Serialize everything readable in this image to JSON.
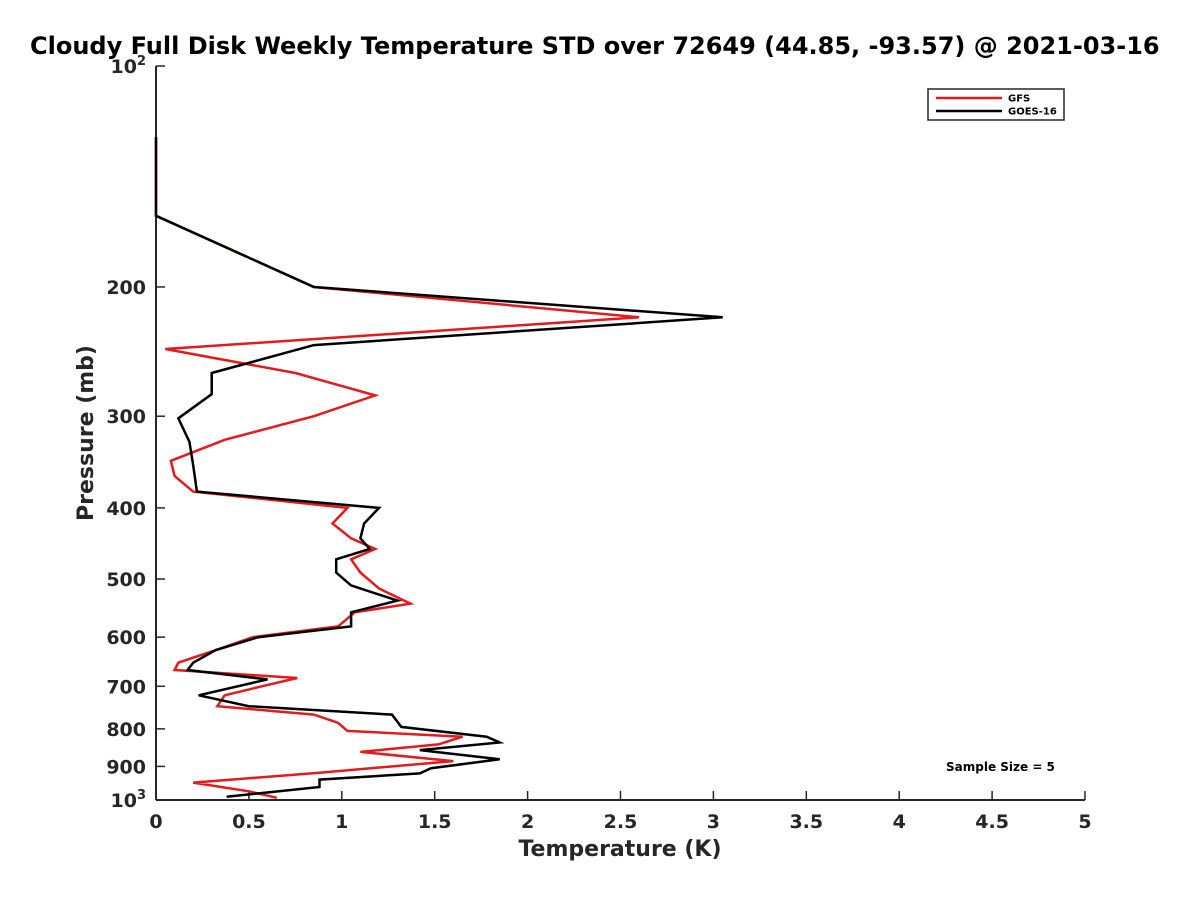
{
  "chart_data": {
    "type": "line",
    "title": "Cloudy Full Disk Weekly Temperature STD over 72649 (44.85, -93.57) @ 2021-03-16",
    "xlabel": "Temperature (K)",
    "ylabel": "Pressure (mb)",
    "xlim": [
      0,
      5
    ],
    "ylim": [
      1000,
      100
    ],
    "yscale": "log",
    "xticks": [
      {
        "value": 0,
        "label": "0"
      },
      {
        "value": 0.5,
        "label": "0.5"
      },
      {
        "value": 1,
        "label": "1"
      },
      {
        "value": 1.5,
        "label": "1.5"
      },
      {
        "value": 2,
        "label": "2"
      },
      {
        "value": 2.5,
        "label": "2.5"
      },
      {
        "value": 3,
        "label": "3"
      },
      {
        "value": 3.5,
        "label": "3.5"
      },
      {
        "value": 4,
        "label": "4"
      },
      {
        "value": 4.5,
        "label": "4.5"
      },
      {
        "value": 5,
        "label": "5"
      }
    ],
    "yticks": [
      {
        "value": 100,
        "label": "10",
        "exp": "2"
      },
      {
        "value": 200,
        "label": "200",
        "exp": ""
      },
      {
        "value": 300,
        "label": "300",
        "exp": ""
      },
      {
        "value": 400,
        "label": "400",
        "exp": ""
      },
      {
        "value": 500,
        "label": "500",
        "exp": ""
      },
      {
        "value": 600,
        "label": "600",
        "exp": ""
      },
      {
        "value": 700,
        "label": "700",
        "exp": ""
      },
      {
        "value": 800,
        "label": "800",
        "exp": ""
      },
      {
        "value": 900,
        "label": "900",
        "exp": ""
      },
      {
        "value": 1000,
        "label": "10",
        "exp": "3"
      }
    ],
    "grid": false,
    "legend_position": "top-right",
    "series": [
      {
        "name": "GFS",
        "color": "#e41a1c",
        "points": [
          [
            0.0,
            125
          ],
          [
            0.0,
            160
          ],
          [
            0.85,
            200
          ],
          [
            2.6,
            220
          ],
          [
            0.05,
            243
          ],
          [
            0.75,
            262
          ],
          [
            1.18,
            281
          ],
          [
            0.85,
            300
          ],
          [
            0.37,
            323
          ],
          [
            0.08,
            345
          ],
          [
            0.1,
            362
          ],
          [
            0.2,
            380
          ],
          [
            1.03,
            400
          ],
          [
            0.95,
            420
          ],
          [
            1.05,
            440
          ],
          [
            1.18,
            455
          ],
          [
            1.05,
            470
          ],
          [
            1.1,
            490
          ],
          [
            1.2,
            515
          ],
          [
            1.37,
            540
          ],
          [
            1.07,
            555
          ],
          [
            0.98,
            580
          ],
          [
            0.52,
            600
          ],
          [
            0.32,
            625
          ],
          [
            0.12,
            650
          ],
          [
            0.1,
            665
          ],
          [
            0.76,
            682
          ],
          [
            0.55,
            702
          ],
          [
            0.37,
            720
          ],
          [
            0.33,
            745
          ],
          [
            0.85,
            765
          ],
          [
            0.98,
            785
          ],
          [
            1.03,
            805
          ],
          [
            1.65,
            820
          ],
          [
            1.52,
            840
          ],
          [
            1.1,
            860
          ],
          [
            1.6,
            885
          ],
          [
            0.88,
            918
          ],
          [
            0.2,
            947
          ],
          [
            0.5,
            973
          ],
          [
            0.65,
            993
          ]
        ]
      },
      {
        "name": "GOES-16",
        "color": "#000000",
        "points": [
          [
            0.0,
            125
          ],
          [
            0.0,
            160
          ],
          [
            0.85,
            200
          ],
          [
            3.05,
            220
          ],
          [
            0.85,
            240
          ],
          [
            0.3,
            262
          ],
          [
            0.3,
            280
          ],
          [
            0.12,
            302
          ],
          [
            0.18,
            325
          ],
          [
            0.2,
            350
          ],
          [
            0.22,
            380
          ],
          [
            1.2,
            400
          ],
          [
            1.12,
            420
          ],
          [
            1.1,
            440
          ],
          [
            1.15,
            455
          ],
          [
            0.97,
            470
          ],
          [
            0.97,
            490
          ],
          [
            1.05,
            510
          ],
          [
            1.3,
            535
          ],
          [
            1.05,
            555
          ],
          [
            1.05,
            580
          ],
          [
            0.55,
            600
          ],
          [
            0.32,
            625
          ],
          [
            0.2,
            650
          ],
          [
            0.17,
            665
          ],
          [
            0.6,
            685
          ],
          [
            0.23,
            720
          ],
          [
            0.5,
            745
          ],
          [
            1.27,
            765
          ],
          [
            1.32,
            795
          ],
          [
            1.78,
            820
          ],
          [
            1.85,
            835
          ],
          [
            1.42,
            855
          ],
          [
            1.85,
            880
          ],
          [
            1.48,
            905
          ],
          [
            1.42,
            920
          ],
          [
            0.88,
            938
          ],
          [
            0.88,
            960
          ],
          [
            0.38,
            990
          ]
        ]
      }
    ],
    "annotations": [
      {
        "text": "Sample Size = 5",
        "position": "bottom-right"
      }
    ]
  }
}
